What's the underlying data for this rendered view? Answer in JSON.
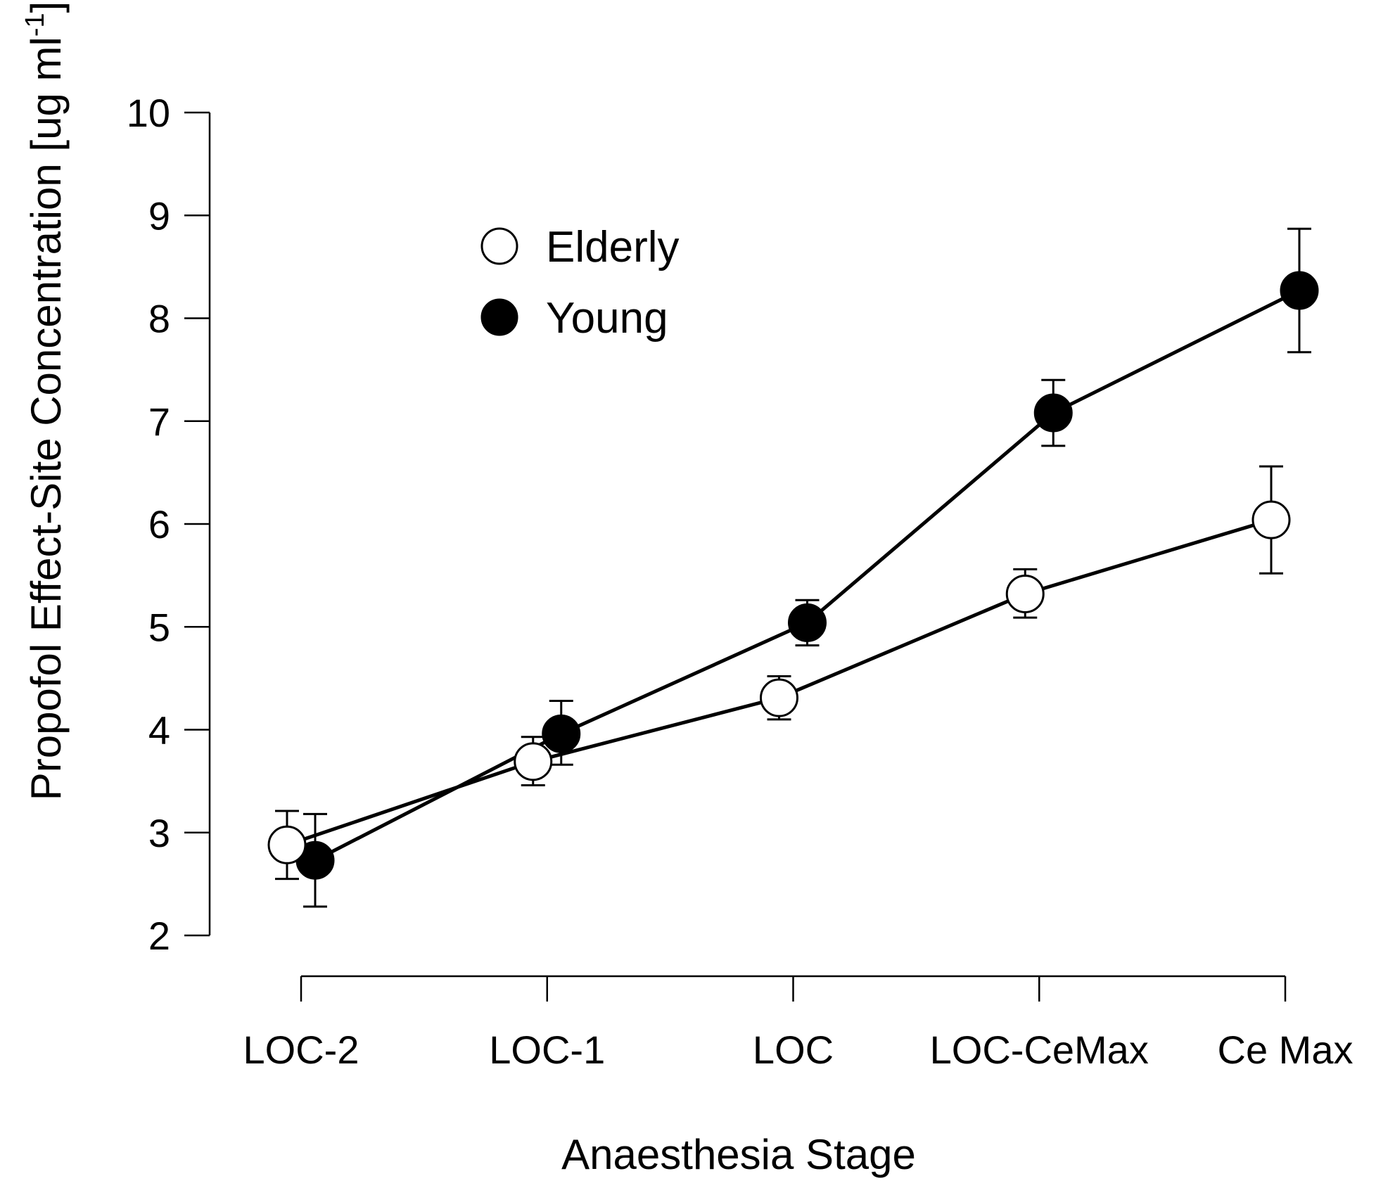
{
  "chart_data": {
    "type": "line",
    "title": "",
    "xlabel": "Anaesthesia Stage",
    "ylabel_main": "Propofol Effect-Site Concentration [ug ml",
    "ylabel_sup": "-1",
    "ylabel_close": "]",
    "ylim": [
      2,
      10
    ],
    "yticks": [
      "2",
      "3",
      "4",
      "5",
      "6",
      "7",
      "8",
      "9",
      "10"
    ],
    "categories": [
      "LOC-2",
      "LOC-1",
      "LOC",
      "LOC-CeMax",
      "Ce Max"
    ],
    "legend_position": "upper-left",
    "series": [
      {
        "name": "Elderly",
        "marker": "open-circle",
        "values": [
          2.88,
          3.69,
          4.31,
          5.32,
          6.04
        ],
        "err_upper": [
          3.21,
          3.93,
          4.52,
          5.56,
          6.56
        ],
        "err_lower": [
          2.55,
          3.46,
          4.1,
          5.09,
          5.52
        ]
      },
      {
        "name": "Young",
        "marker": "filled-circle",
        "values": [
          2.73,
          3.96,
          5.04,
          7.08,
          8.27
        ],
        "err_upper": [
          3.18,
          4.28,
          5.26,
          7.4,
          8.87
        ],
        "err_lower": [
          2.28,
          3.66,
          4.82,
          6.76,
          7.67
        ]
      }
    ],
    "colors": {
      "line": "#000000",
      "open_fill": "#ffffff",
      "filled_fill": "#000000"
    }
  }
}
